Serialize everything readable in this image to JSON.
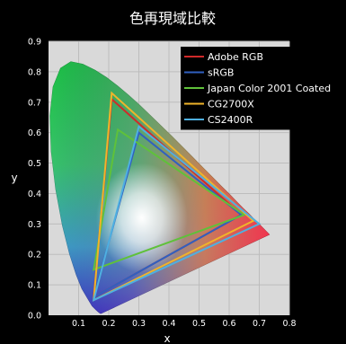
{
  "chart_data": {
    "type": "line",
    "title": "色再現域比較",
    "xlabel": "x",
    "ylabel": "y",
    "xlim": [
      0.0,
      0.8
    ],
    "ylim": [
      0.0,
      0.9
    ],
    "x_ticks": [
      "0.1",
      "0.2",
      "0.3",
      "0.4",
      "0.5",
      "0.6",
      "0.7",
      "0.8"
    ],
    "y_ticks": [
      "0.0",
      "0.1",
      "0.2",
      "0.3",
      "0.4",
      "0.5",
      "0.6",
      "0.7",
      "0.8",
      "0.9"
    ],
    "grid": true,
    "legend_position": "top-right",
    "background": "#d9d9d9",
    "locus": [
      [
        0.175,
        0.005
      ],
      [
        0.172,
        0.005
      ],
      [
        0.166,
        0.009
      ],
      [
        0.156,
        0.018
      ],
      [
        0.144,
        0.03
      ],
      [
        0.129,
        0.055
      ],
      [
        0.11,
        0.087
      ],
      [
        0.091,
        0.133
      ],
      [
        0.069,
        0.201
      ],
      [
        0.045,
        0.295
      ],
      [
        0.023,
        0.413
      ],
      [
        0.008,
        0.538
      ],
      [
        0.004,
        0.655
      ],
      [
        0.014,
        0.75
      ],
      [
        0.039,
        0.812
      ],
      [
        0.074,
        0.834
      ],
      [
        0.114,
        0.826
      ],
      [
        0.155,
        0.806
      ],
      [
        0.193,
        0.782
      ],
      [
        0.23,
        0.754
      ],
      [
        0.266,
        0.724
      ],
      [
        0.302,
        0.692
      ],
      [
        0.337,
        0.659
      ],
      [
        0.373,
        0.624
      ],
      [
        0.409,
        0.59
      ],
      [
        0.444,
        0.555
      ],
      [
        0.479,
        0.52
      ],
      [
        0.512,
        0.487
      ],
      [
        0.545,
        0.454
      ],
      [
        0.575,
        0.424
      ],
      [
        0.603,
        0.397
      ],
      [
        0.627,
        0.372
      ],
      [
        0.648,
        0.351
      ],
      [
        0.666,
        0.334
      ],
      [
        0.68,
        0.32
      ],
      [
        0.69,
        0.31
      ],
      [
        0.7,
        0.3
      ],
      [
        0.713,
        0.287
      ],
      [
        0.735,
        0.265
      ]
    ],
    "series": [
      {
        "name": "Adobe RGB",
        "color": "#d02a2a",
        "points": [
          [
            0.64,
            0.33
          ],
          [
            0.21,
            0.71
          ],
          [
            0.15,
            0.06
          ]
        ]
      },
      {
        "name": "sRGB",
        "color": "#3060c0",
        "points": [
          [
            0.64,
            0.33
          ],
          [
            0.3,
            0.6
          ],
          [
            0.15,
            0.06
          ]
        ]
      },
      {
        "name": "Japan Color 2001 Coated",
        "color": "#5fc13a",
        "points": [
          [
            0.65,
            0.33
          ],
          [
            0.23,
            0.61
          ],
          [
            0.15,
            0.15
          ]
        ]
      },
      {
        "name": "CG2700X",
        "color": "#f0b42a",
        "points": [
          [
            0.68,
            0.31
          ],
          [
            0.21,
            0.73
          ],
          [
            0.15,
            0.05
          ]
        ]
      },
      {
        "name": "CS2400R",
        "color": "#4fb0e0",
        "points": [
          [
            0.7,
            0.3
          ],
          [
            0.3,
            0.62
          ],
          [
            0.15,
            0.05
          ]
        ]
      }
    ]
  }
}
